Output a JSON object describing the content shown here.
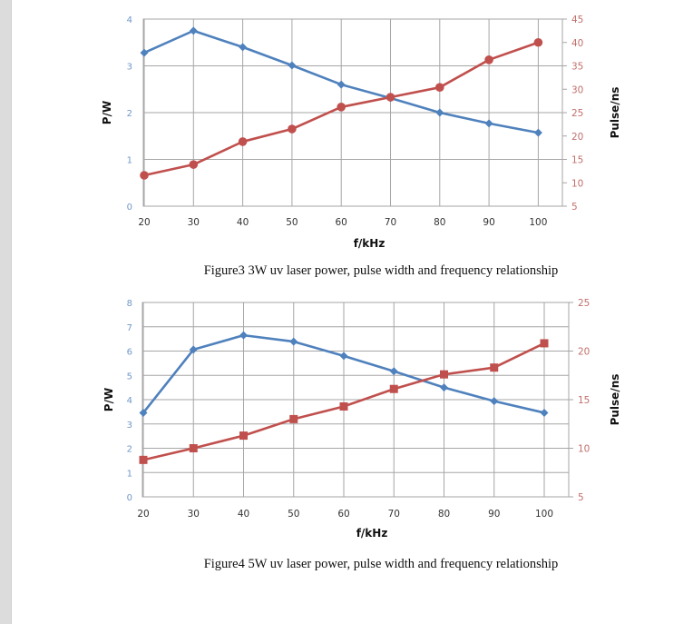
{
  "chart_data": [
    {
      "type": "line",
      "title": "",
      "caption": "Figure3 3W uv laser power, pulse width and frequency relationship",
      "xlabel": "f/kHz",
      "ylabel": "P/W",
      "y2label": "Pulse/ns",
      "x": [
        20,
        30,
        40,
        50,
        60,
        70,
        80,
        90,
        100
      ],
      "ylim": [
        0,
        4
      ],
      "yticks": [
        0,
        1,
        2,
        3,
        4
      ],
      "y2lim": [
        5,
        45
      ],
      "y2ticks": [
        5,
        10,
        15,
        20,
        25,
        30,
        35,
        40,
        45
      ],
      "grid": true,
      "legend": "none",
      "series": [
        {
          "name": "P/W",
          "axis": "left",
          "marker": "diamond",
          "color": "#4F81BD",
          "values": [
            3.28,
            3.75,
            3.4,
            3.01,
            2.6,
            2.31,
            2.0,
            1.77,
            1.57
          ]
        },
        {
          "name": "Pulse/ns",
          "axis": "right",
          "marker": "circle",
          "color": "#C0504D",
          "values": [
            11.6,
            13.9,
            18.8,
            21.5,
            26.2,
            28.3,
            30.4,
            36.3,
            40.0
          ]
        }
      ]
    },
    {
      "type": "line",
      "title": "",
      "caption": "Figure4 5W uv laser power, pulse width and frequency relationship",
      "xlabel": "f/kHz",
      "ylabel": "P/W",
      "y2label": "Pulse/ns",
      "x": [
        20,
        30,
        40,
        50,
        60,
        70,
        80,
        90,
        100
      ],
      "ylim": [
        0,
        8
      ],
      "yticks": [
        0,
        1,
        2,
        3,
        4,
        5,
        6,
        7,
        8
      ],
      "y2lim": [
        5,
        25
      ],
      "y2ticks": [
        5,
        10,
        15,
        20,
        25
      ],
      "grid": true,
      "legend": "none",
      "series": [
        {
          "name": "P/W",
          "axis": "left",
          "marker": "diamond",
          "color": "#4F81BD",
          "values": [
            3.46,
            6.06,
            6.65,
            6.39,
            5.8,
            5.17,
            4.5,
            3.94,
            3.46
          ]
        },
        {
          "name": "Pulse/ns",
          "axis": "right",
          "marker": "square",
          "color": "#C0504D",
          "values": [
            8.8,
            10.0,
            11.3,
            13.0,
            14.3,
            16.1,
            17.6,
            18.3,
            20.8
          ]
        }
      ]
    }
  ]
}
